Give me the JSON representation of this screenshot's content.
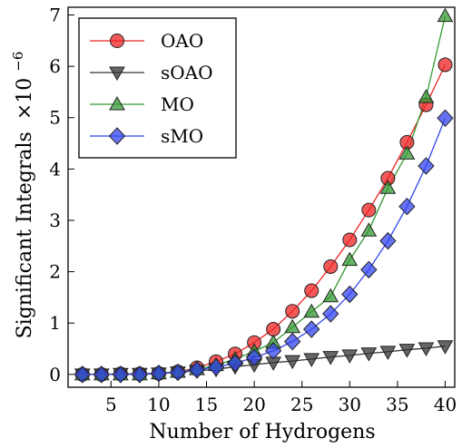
{
  "chart_data": {
    "type": "line",
    "xlabel": "Number of Hydrogens",
    "ylabel": "Significant Integrals",
    "ylabel_multiplier": "×10",
    "ylabel_exponent": "−6",
    "xlim": [
      0.5,
      41
    ],
    "ylim": [
      -0.25,
      7.15
    ],
    "xticks": [
      5,
      10,
      15,
      20,
      25,
      30,
      35,
      40
    ],
    "yticks": [
      0,
      1,
      2,
      3,
      4,
      5,
      6,
      7
    ],
    "grid": false,
    "legend_position": "top-left",
    "x": [
      2,
      4,
      6,
      8,
      10,
      12,
      14,
      16,
      18,
      20,
      22,
      24,
      26,
      28,
      30,
      32,
      34,
      36,
      38,
      40
    ],
    "series": [
      {
        "name": "OAO",
        "marker": "circle",
        "color": "#ee2222",
        "values": [
          0.0,
          0.0,
          0.01,
          0.01,
          0.02,
          0.05,
          0.13,
          0.25,
          0.4,
          0.62,
          0.88,
          1.23,
          1.63,
          2.1,
          2.62,
          3.2,
          3.82,
          4.52,
          5.25,
          6.03
        ]
      },
      {
        "name": "sOAO",
        "marker": "triangle-down",
        "color": "#333333",
        "values": [
          0.0,
          0.0,
          0.01,
          0.01,
          0.02,
          0.04,
          0.07,
          0.1,
          0.15,
          0.19,
          0.23,
          0.26,
          0.3,
          0.34,
          0.37,
          0.41,
          0.44,
          0.48,
          0.51,
          0.55
        ]
      },
      {
        "name": "MO",
        "marker": "triangle-up",
        "color": "#339933",
        "values": [
          0.0,
          0.0,
          0.0,
          0.0,
          0.02,
          0.05,
          0.1,
          0.18,
          0.3,
          0.45,
          0.62,
          0.92,
          1.22,
          1.52,
          2.23,
          2.8,
          3.63,
          4.3,
          5.4,
          6.98
        ]
      },
      {
        "name": "sMO",
        "marker": "diamond",
        "color": "#3344ee",
        "values": [
          0.0,
          0.0,
          0.0,
          0.0,
          0.02,
          0.04,
          0.09,
          0.14,
          0.22,
          0.33,
          0.46,
          0.64,
          0.88,
          1.18,
          1.56,
          2.04,
          2.6,
          3.27,
          4.06,
          4.99
        ]
      }
    ]
  }
}
